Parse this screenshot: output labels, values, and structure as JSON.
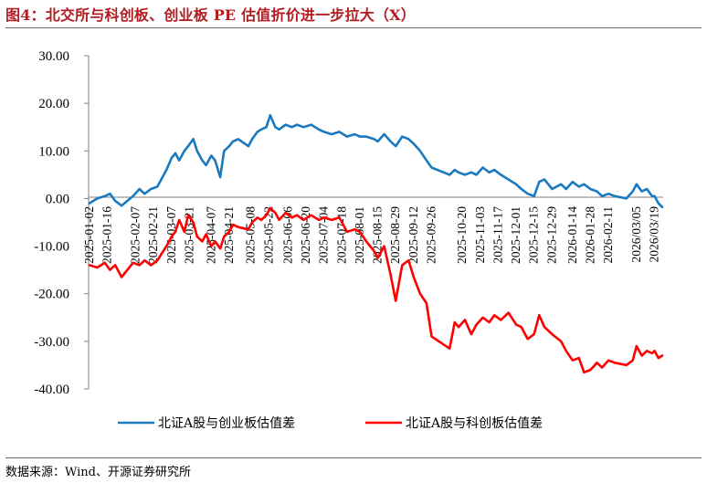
{
  "title": "图4：北交所与科创板、创业板 PE 估值折价进一步拉大（X）",
  "source": "数据来源：Wind、开源证券研究所",
  "chart_data": {
    "type": "line",
    "ylim": [
      -40,
      30
    ],
    "yticks": [
      "30.00",
      "20.00",
      "10.00",
      "0.00",
      "-10.00",
      "-20.00",
      "-30.00",
      "-40.00"
    ],
    "xlim": [
      "2025-01-02",
      "2026-03-25"
    ],
    "xticks": [
      "2025-01-02",
      "2025-01-16",
      "2025-02-07",
      "2025-02-21",
      "2025-03-07",
      "2025-03-21",
      "2025-04-07",
      "2025-04-21",
      "2025-05-08",
      "2025-05-22",
      "2025-06-06",
      "2025-06-20",
      "2025-07-04",
      "2025-07-18",
      "2025-08-01",
      "2025-08-15",
      "2025-08-29",
      "2025-09-12",
      "2025-09-26",
      "2025-10-20",
      "2025-11-03",
      "2025-11-17",
      "2025-12-01",
      "2025-12-15",
      "2025-12-29",
      "2026-01-14",
      "2026-01-28",
      "2026-02-11",
      "2026/03/05",
      "2026/03/19"
    ],
    "legend_position": "bottom",
    "series": [
      {
        "name": "北证A股与创业板估值差",
        "color": "#1a7ac0",
        "points": [
          [
            "2025-01-02",
            -1.0
          ],
          [
            "2025-01-08",
            0.0
          ],
          [
            "2025-01-14",
            0.5
          ],
          [
            "2025-01-18",
            1.0
          ],
          [
            "2025-01-22",
            -0.5
          ],
          [
            "2025-01-27",
            -1.5
          ],
          [
            "2025-02-05",
            0.5
          ],
          [
            "2025-02-10",
            2.0
          ],
          [
            "2025-02-14",
            1.0
          ],
          [
            "2025-02-19",
            2.0
          ],
          [
            "2025-02-24",
            2.5
          ],
          [
            "2025-03-03",
            6.0
          ],
          [
            "2025-03-07",
            8.5
          ],
          [
            "2025-03-10",
            9.5
          ],
          [
            "2025-03-13",
            8.0
          ],
          [
            "2025-03-17",
            10.0
          ],
          [
            "2025-03-20",
            11.0
          ],
          [
            "2025-03-24",
            12.5
          ],
          [
            "2025-03-27",
            10.0
          ],
          [
            "2025-03-31",
            8.0
          ],
          [
            "2025-04-03",
            7.0
          ],
          [
            "2025-04-07",
            9.0
          ],
          [
            "2025-04-10",
            8.0
          ],
          [
            "2025-04-14",
            4.5
          ],
          [
            "2025-04-17",
            10.0
          ],
          [
            "2025-04-21",
            11.0
          ],
          [
            "2025-04-24",
            12.0
          ],
          [
            "2025-04-28",
            12.5
          ],
          [
            "2025-05-06",
            11.0
          ],
          [
            "2025-05-09",
            12.5
          ],
          [
            "2025-05-13",
            14.0
          ],
          [
            "2025-05-16",
            14.5
          ],
          [
            "2025-05-20",
            15.0
          ],
          [
            "2025-05-23",
            17.5
          ],
          [
            "2025-05-27",
            15.0
          ],
          [
            "2025-05-30",
            14.5
          ],
          [
            "2025-06-04",
            15.5
          ],
          [
            "2025-06-09",
            15.0
          ],
          [
            "2025-06-13",
            15.5
          ],
          [
            "2025-06-18",
            15.0
          ],
          [
            "2025-06-24",
            15.5
          ],
          [
            "2025-06-30",
            14.5
          ],
          [
            "2025-07-04",
            14.0
          ],
          [
            "2025-07-10",
            13.5
          ],
          [
            "2025-07-16",
            14.0
          ],
          [
            "2025-07-22",
            13.0
          ],
          [
            "2025-07-28",
            13.5
          ],
          [
            "2025-08-01",
            13.0
          ],
          [
            "2025-08-06",
            13.0
          ],
          [
            "2025-08-12",
            12.5
          ],
          [
            "2025-08-15",
            12.0
          ],
          [
            "2025-08-20",
            13.5
          ],
          [
            "2025-08-25",
            12.0
          ],
          [
            "2025-08-29",
            11.0
          ],
          [
            "2025-09-03",
            13.0
          ],
          [
            "2025-09-08",
            12.5
          ],
          [
            "2025-09-12",
            11.5
          ],
          [
            "2025-09-17",
            10.0
          ],
          [
            "2025-09-22",
            8.0
          ],
          [
            "2025-09-26",
            6.5
          ],
          [
            "2025-10-10",
            5.0
          ],
          [
            "2025-10-14",
            6.0
          ],
          [
            "2025-10-17",
            5.5
          ],
          [
            "2025-10-22",
            5.0
          ],
          [
            "2025-10-27",
            5.5
          ],
          [
            "2025-10-31",
            5.0
          ],
          [
            "2025-11-05",
            6.5
          ],
          [
            "2025-11-10",
            5.5
          ],
          [
            "2025-11-14",
            6.0
          ],
          [
            "2025-11-19",
            5.0
          ],
          [
            "2025-11-25",
            4.0
          ],
          [
            "2025-12-01",
            3.0
          ],
          [
            "2025-12-05",
            2.0
          ],
          [
            "2025-12-10",
            1.0
          ],
          [
            "2025-12-15",
            0.5
          ],
          [
            "2025-12-19",
            3.5
          ],
          [
            "2025-12-23",
            4.0
          ],
          [
            "2025-12-29",
            2.0
          ],
          [
            "2026-01-05",
            3.0
          ],
          [
            "2026-01-09",
            2.0
          ],
          [
            "2026-01-14",
            3.5
          ],
          [
            "2026-01-19",
            2.5
          ],
          [
            "2026-01-23",
            3.0
          ],
          [
            "2026-01-28",
            2.0
          ],
          [
            "2026-02-02",
            1.5
          ],
          [
            "2026-02-06",
            0.5
          ],
          [
            "2026-02-11",
            1.0
          ],
          [
            "2026-02-16",
            0.5
          ],
          [
            "2026-02-25",
            0.0
          ],
          [
            "2026-03-02",
            1.5
          ],
          [
            "2026-03-05",
            3.0
          ],
          [
            "2026-03-09",
            1.5
          ],
          [
            "2026-03-13",
            2.0
          ],
          [
            "2026-03-17",
            0.5
          ],
          [
            "2026-03-19",
            0.5
          ],
          [
            "2026-03-22",
            -1.0
          ],
          [
            "2026-03-25",
            -1.8
          ]
        ]
      },
      {
        "name": "北证A股与科创板估值差",
        "color": "#ff0000",
        "points": [
          [
            "2025-01-02",
            -14.0
          ],
          [
            "2025-01-08",
            -14.5
          ],
          [
            "2025-01-14",
            -13.5
          ],
          [
            "2025-01-18",
            -15.0
          ],
          [
            "2025-01-22",
            -14.0
          ],
          [
            "2025-01-27",
            -16.5
          ],
          [
            "2025-02-05",
            -13.5
          ],
          [
            "2025-02-10",
            -14.0
          ],
          [
            "2025-02-14",
            -13.0
          ],
          [
            "2025-02-19",
            -14.0
          ],
          [
            "2025-02-24",
            -13.0
          ],
          [
            "2025-03-03",
            -10.0
          ],
          [
            "2025-03-07",
            -8.0
          ],
          [
            "2025-03-10",
            -7.0
          ],
          [
            "2025-03-13",
            -4.5
          ],
          [
            "2025-03-17",
            -7.0
          ],
          [
            "2025-03-20",
            -3.5
          ],
          [
            "2025-03-24",
            -5.0
          ],
          [
            "2025-03-27",
            -8.0
          ],
          [
            "2025-03-31",
            -9.0
          ],
          [
            "2025-04-03",
            -7.5
          ],
          [
            "2025-04-07",
            -10.0
          ],
          [
            "2025-04-10",
            -9.0
          ],
          [
            "2025-04-14",
            -10.5
          ],
          [
            "2025-04-17",
            -8.0
          ],
          [
            "2025-04-21",
            -7.0
          ],
          [
            "2025-04-24",
            -5.5
          ],
          [
            "2025-04-28",
            -6.0
          ],
          [
            "2025-05-06",
            -6.5
          ],
          [
            "2025-05-09",
            -5.0
          ],
          [
            "2025-05-13",
            -4.0
          ],
          [
            "2025-05-16",
            -4.5
          ],
          [
            "2025-05-20",
            -3.5
          ],
          [
            "2025-05-23",
            -2.0
          ],
          [
            "2025-05-27",
            -3.0
          ],
          [
            "2025-05-30",
            -4.5
          ],
          [
            "2025-06-04",
            -3.0
          ],
          [
            "2025-06-09",
            -4.0
          ],
          [
            "2025-06-13",
            -3.5
          ],
          [
            "2025-06-18",
            -4.5
          ],
          [
            "2025-06-24",
            -3.5
          ],
          [
            "2025-06-30",
            -4.5
          ],
          [
            "2025-07-04",
            -4.0
          ],
          [
            "2025-07-10",
            -4.5
          ],
          [
            "2025-07-16",
            -4.0
          ],
          [
            "2025-07-22",
            -7.0
          ],
          [
            "2025-07-28",
            -6.5
          ],
          [
            "2025-08-01",
            -7.0
          ],
          [
            "2025-08-06",
            -9.0
          ],
          [
            "2025-08-12",
            -11.0
          ],
          [
            "2025-08-15",
            -12.5
          ],
          [
            "2025-08-20",
            -10.0
          ],
          [
            "2025-08-25",
            -16.0
          ],
          [
            "2025-08-29",
            -21.5
          ],
          [
            "2025-09-03",
            -14.0
          ],
          [
            "2025-09-08",
            -13.0
          ],
          [
            "2025-09-12",
            -16.5
          ],
          [
            "2025-09-17",
            -20.0
          ],
          [
            "2025-09-22",
            -22.0
          ],
          [
            "2025-09-26",
            -29.0
          ],
          [
            "2025-10-10",
            -31.5
          ],
          [
            "2025-10-14",
            -26.0
          ],
          [
            "2025-10-17",
            -27.0
          ],
          [
            "2025-10-22",
            -25.5
          ],
          [
            "2025-10-27",
            -28.5
          ],
          [
            "2025-10-31",
            -26.5
          ],
          [
            "2025-11-05",
            -25.0
          ],
          [
            "2025-11-10",
            -26.0
          ],
          [
            "2025-11-14",
            -24.5
          ],
          [
            "2025-11-19",
            -25.5
          ],
          [
            "2025-11-25",
            -24.0
          ],
          [
            "2025-12-01",
            -26.5
          ],
          [
            "2025-12-05",
            -27.0
          ],
          [
            "2025-12-10",
            -29.5
          ],
          [
            "2025-12-15",
            -28.5
          ],
          [
            "2025-12-19",
            -24.5
          ],
          [
            "2025-12-23",
            -27.0
          ],
          [
            "2025-12-29",
            -28.5
          ],
          [
            "2026-01-05",
            -30.0
          ],
          [
            "2026-01-09",
            -32.0
          ],
          [
            "2026-01-14",
            -34.0
          ],
          [
            "2026-01-19",
            -33.5
          ],
          [
            "2026-01-23",
            -36.5
          ],
          [
            "2026-01-28",
            -36.0
          ],
          [
            "2026-02-02",
            -34.5
          ],
          [
            "2026-02-06",
            -35.5
          ],
          [
            "2026-02-11",
            -34.0
          ],
          [
            "2026-02-16",
            -34.5
          ],
          [
            "2026-02-25",
            -35.0
          ],
          [
            "2026-03-02",
            -34.0
          ],
          [
            "2026-03-05",
            -31.0
          ],
          [
            "2026-03-09",
            -33.0
          ],
          [
            "2026-03-13",
            -32.0
          ],
          [
            "2026-03-17",
            -32.5
          ],
          [
            "2026-03-19",
            -32.0
          ],
          [
            "2026-03-22",
            -33.5
          ],
          [
            "2026-03-25",
            -33.0
          ]
        ]
      }
    ]
  }
}
